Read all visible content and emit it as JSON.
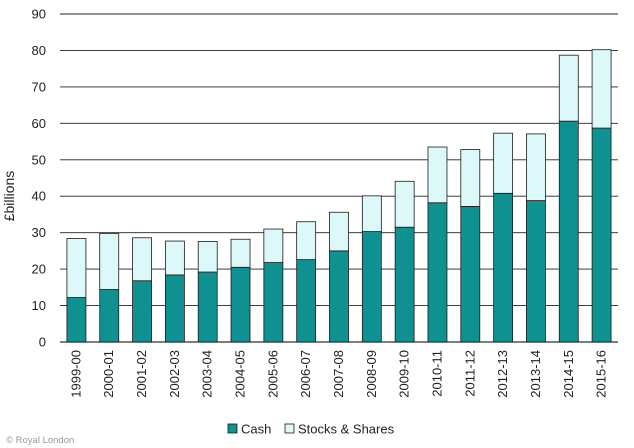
{
  "chart_data": {
    "type": "bar",
    "stacked": true,
    "categories": [
      "1999-00",
      "2000-01",
      "2001-02",
      "2002-03",
      "2003-04",
      "2004-05",
      "2005-06",
      "2006-07",
      "2007-08",
      "2008-09",
      "2009-10",
      "2010-11",
      "2011-12",
      "2012-13",
      "2013-14",
      "2014-15",
      "2015-16"
    ],
    "series": [
      {
        "name": "Cash",
        "color": "#0f9191",
        "values": [
          12.2,
          14.4,
          16.8,
          18.4,
          19.2,
          20.5,
          21.8,
          22.6,
          25.0,
          30.3,
          31.5,
          38.2,
          37.2,
          40.8,
          38.8,
          60.6,
          58.7
        ]
      },
      {
        "name": "Stocks & Shares",
        "color": "#ddf8f8",
        "values": [
          16.2,
          15.4,
          11.8,
          9.3,
          8.4,
          7.7,
          9.2,
          10.4,
          10.6,
          9.8,
          12.6,
          15.3,
          15.6,
          16.5,
          18.3,
          18.1,
          21.5
        ]
      }
    ],
    "title": "",
    "xlabel": "",
    "ylabel": "£billions",
    "ylim": [
      0,
      90
    ],
    "yticks": [
      "0",
      "10",
      "20",
      "30",
      "40",
      "50",
      "60",
      "70",
      "80",
      "90"
    ],
    "grid": true,
    "legend": "bottom"
  },
  "credit": "© Royal London"
}
